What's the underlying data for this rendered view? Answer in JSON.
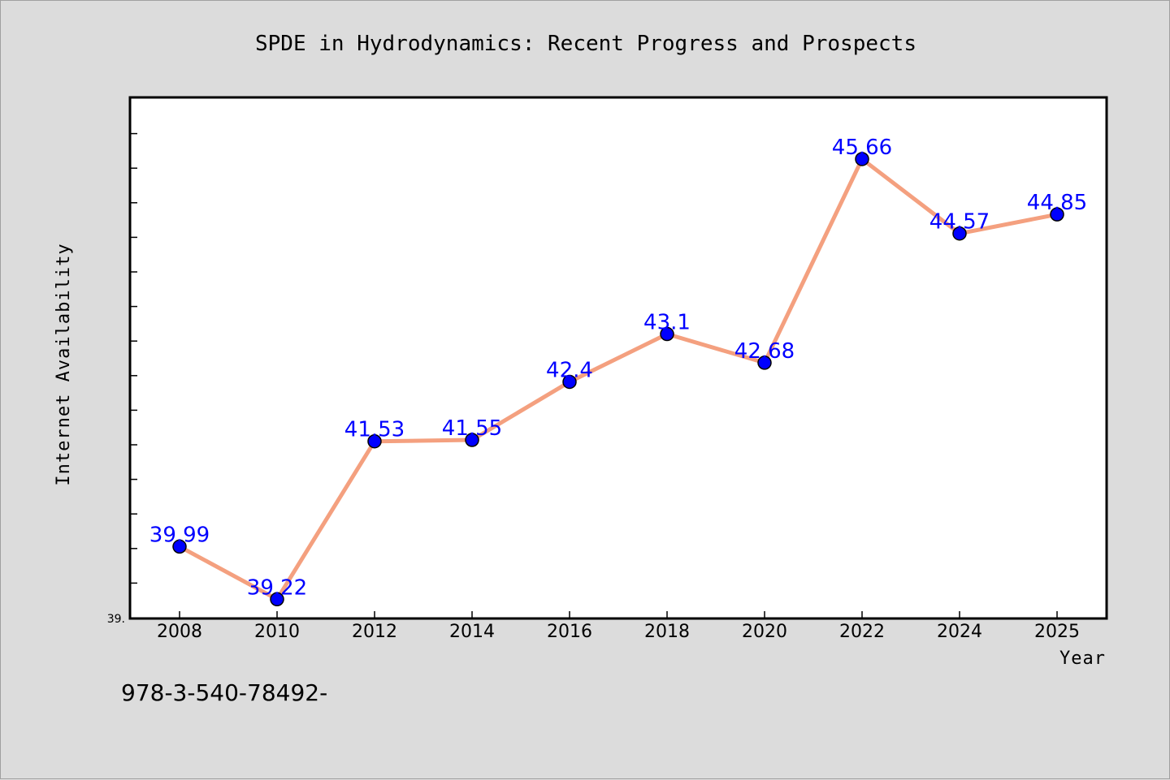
{
  "chart_data": {
    "type": "line",
    "title": "SPDE in Hydrodynamics: Recent Progress and Prospects",
    "xlabel": "Year",
    "ylabel": "Internet Availability",
    "categories": [
      "2008",
      "2010",
      "2012",
      "2014",
      "2016",
      "2018",
      "2020",
      "2022",
      "2024",
      "2025"
    ],
    "series": [
      {
        "values": [
          39.99,
          39.22,
          41.53,
          41.55,
          42.4,
          43.1,
          42.68,
          45.66,
          44.57,
          44.85
        ],
        "data_labels": [
          "39.99",
          "39.22",
          "41.53",
          "41.55",
          "42.4",
          "43.1",
          "42.68",
          "45.66",
          "44.57",
          "44.85"
        ],
        "line_color": "#f4a07f",
        "marker_color": "#0000ff"
      }
    ],
    "ylim": [
      38.95,
      46.55
    ],
    "y_tick_labels": [
      {
        "value": 38.95,
        "label": "39."
      }
    ],
    "grid": false,
    "legend": "none"
  },
  "footer": {
    "text": "978-3-540-78492-"
  },
  "colors": {
    "background": "#dcdcdc",
    "plot_background": "#ffffff",
    "line": "#f4a07f",
    "marker": "#0000ff",
    "label": "#0000ff"
  }
}
